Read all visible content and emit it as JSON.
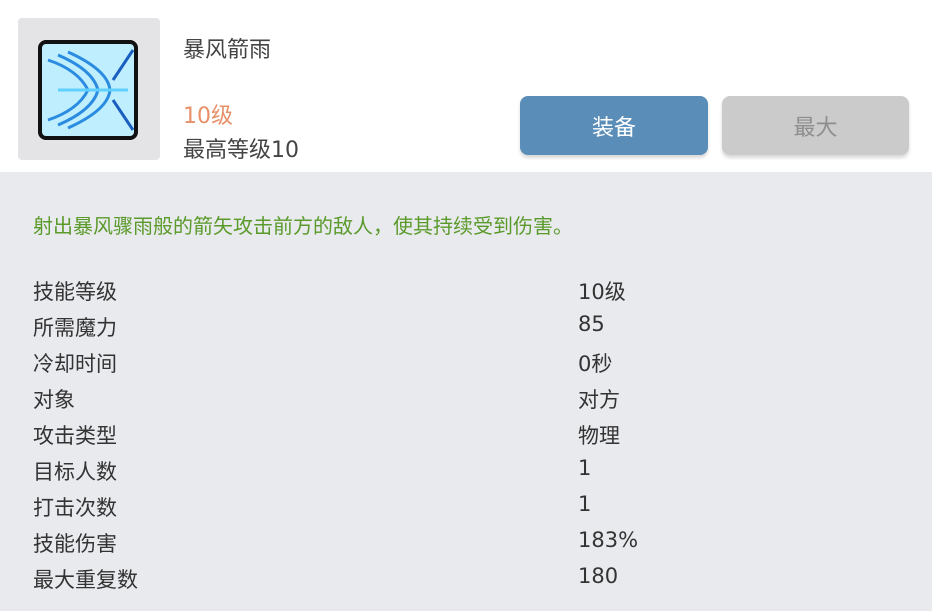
{
  "skill": {
    "name": "暴风箭雨",
    "level": "10级",
    "max_level": "最高等级10",
    "icon": "arrow-storm-skill-icon"
  },
  "buttons": {
    "equip": "装备",
    "max": "最大"
  },
  "description": "射出暴风骤雨般的箭矢攻击前方的敌人，使其持续受到伤害。",
  "stats": [
    {
      "label": "技能等级",
      "value": "10级"
    },
    {
      "label": "所需魔力",
      "value": "85"
    },
    {
      "label": "冷却时间",
      "value": "0秒"
    },
    {
      "label": "对象",
      "value": "对方"
    },
    {
      "label": "攻击类型",
      "value": "物理"
    },
    {
      "label": "目标人数",
      "value": "1"
    },
    {
      "label": "打击次数",
      "value": "1"
    },
    {
      "label": "技能伤害",
      "value": "183%"
    },
    {
      "label": "最大重复数",
      "value": "180"
    }
  ]
}
